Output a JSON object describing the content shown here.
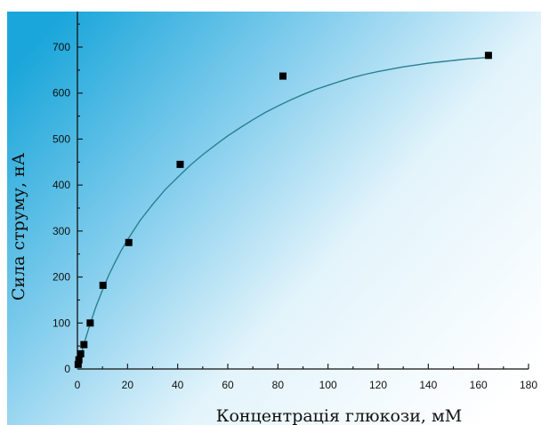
{
  "chart_data": {
    "type": "scatter",
    "title": "",
    "xlabel": "Концентрація глюкози, мМ",
    "ylabel": "Сила струму, нА",
    "xlim": [
      0,
      180
    ],
    "ylim": [
      0,
      750
    ],
    "x_ticks": [
      0,
      20,
      40,
      60,
      80,
      100,
      120,
      140,
      160,
      180
    ],
    "y_ticks": [
      0,
      100,
      200,
      300,
      400,
      500,
      600,
      700
    ],
    "grid": false,
    "legend": "none",
    "series": [
      {
        "kind": "points",
        "marker": "square",
        "x": [
          0.3,
          0.6,
          1.3,
          2.6,
          5.1,
          10.2,
          20.5,
          41,
          82,
          164
        ],
        "y": [
          10,
          20,
          33,
          53,
          100,
          182,
          275,
          445,
          637,
          682
        ]
      },
      {
        "kind": "fit-curve",
        "x": [
          0,
          2.5,
          5,
          7.5,
          10,
          12.5,
          15,
          17.5,
          20,
          25,
          30,
          35,
          40,
          45,
          50,
          55,
          60,
          65,
          70,
          75,
          80,
          85,
          90,
          95,
          100,
          105,
          110,
          115,
          120,
          125,
          130,
          135,
          140,
          145,
          150,
          155,
          160,
          164
        ],
        "y": [
          0,
          52,
          97,
          137,
          172,
          204,
          232,
          258,
          281,
          323,
          358,
          390,
          417,
          443,
          466,
          487,
          507,
          525,
          542,
          558,
          572,
          585,
          597,
          608,
          617,
          626,
          634,
          641,
          647,
          652,
          657,
          661,
          665,
          668,
          671,
          674,
          676,
          678
        ]
      }
    ]
  },
  "colors": {
    "gradient_start": "#1aa6da",
    "gradient_end": "#ffffff",
    "curve": "#2a7f92",
    "marker": "#000000",
    "axis": "#111111"
  }
}
